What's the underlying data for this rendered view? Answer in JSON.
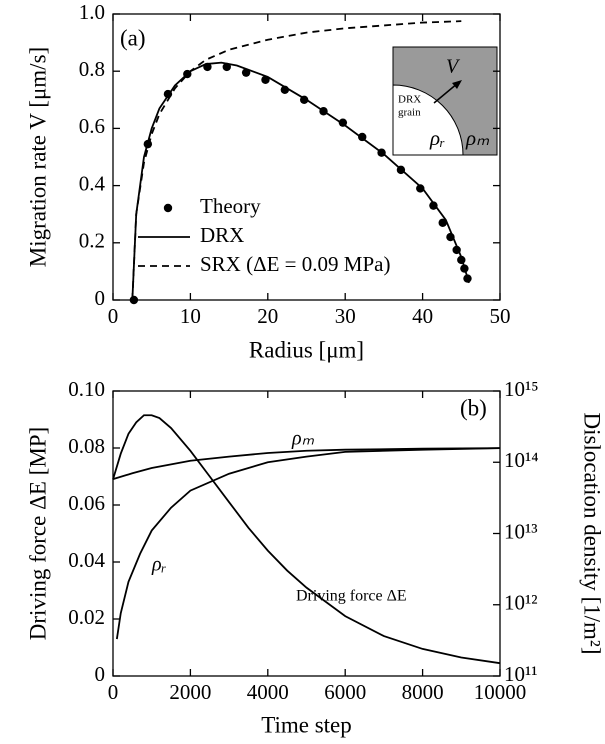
{
  "chart_data": [
    {
      "type": "line",
      "panel_label": "(a)",
      "xlabel": "Radius [μm]",
      "ylabel": "Migration rate V [μm/s]",
      "xlim": [
        0,
        50
      ],
      "xticks": [
        0,
        10,
        20,
        30,
        40,
        50
      ],
      "ylim": [
        0,
        1
      ],
      "yticks": [
        0,
        0.2,
        0.4,
        0.6,
        0.8,
        {
          "value": 1,
          "label": "1.0"
        }
      ],
      "series": [
        {
          "name": "Theory",
          "style": "dots",
          "color": "#000000",
          "x": [
            2.7,
            4.5,
            7.1,
            9.6,
            12.2,
            14.7,
            17.2,
            19.7,
            22.2,
            24.7,
            27.2,
            29.7,
            32.2,
            34.7,
            37.2,
            39.7,
            41.4,
            42.6,
            43.6,
            44.4,
            45.0,
            45.4,
            45.8
          ],
          "values": [
            0,
            0.545,
            0.72,
            0.79,
            0.815,
            0.815,
            0.795,
            0.77,
            0.735,
            0.7,
            0.66,
            0.62,
            0.57,
            0.515,
            0.455,
            0.39,
            0.33,
            0.27,
            0.22,
            0.175,
            0.14,
            0.11,
            0.075
          ]
        },
        {
          "name": "DRX",
          "style": "solid",
          "color": "#000000",
          "x": [
            2.5,
            3,
            4,
            5,
            6,
            8,
            10,
            12,
            14,
            16,
            20,
            25,
            30,
            35,
            40,
            43,
            45,
            46
          ],
          "values": [
            0,
            0.3,
            0.5,
            0.6,
            0.67,
            0.75,
            0.8,
            0.825,
            0.83,
            0.82,
            0.78,
            0.7,
            0.61,
            0.51,
            0.39,
            0.28,
            0.15,
            0.06
          ]
        },
        {
          "name": "SRX (ΔE = 0.09 MPa)",
          "style": "dashed",
          "color": "#000000",
          "x": [
            2.5,
            3,
            4,
            5,
            6,
            8,
            10,
            12,
            15,
            20,
            25,
            30,
            35,
            40,
            45
          ],
          "values": [
            0,
            0.3,
            0.48,
            0.58,
            0.65,
            0.74,
            0.8,
            0.84,
            0.875,
            0.91,
            0.935,
            0.95,
            0.96,
            0.97,
            0.975
          ]
        }
      ],
      "annotations": [
        "DRX",
        "grain",
        "V",
        "ρᵣ",
        "ρₘ"
      ]
    },
    {
      "type": "line",
      "panel_label": "(b)",
      "xlabel": "Time step",
      "ylabel": "Driving force ΔE [MP]",
      "y2label": "Dislocation density [1/m²]",
      "xlim": [
        0,
        10000
      ],
      "xticks": [
        0,
        2000,
        4000,
        6000,
        8000,
        10000
      ],
      "ylim": [
        0,
        0.1
      ],
      "yticks": [
        0,
        0.02,
        0.04,
        0.06,
        0.08,
        {
          "value": 0.1,
          "label": "0.10"
        }
      ],
      "y2lim": [
        100000000000,
        1000000000000000
      ],
      "y2scale": "log",
      "y2ticks": [
        {
          "value": 100000000000,
          "label": "10¹¹"
        },
        {
          "value": 1000000000000,
          "label": "10¹²"
        },
        {
          "value": 10000000000000,
          "label": "10¹³"
        },
        {
          "value": 100000000000000,
          "label": "10¹⁴"
        },
        {
          "value": 1000000000000000,
          "label": "10¹⁵"
        }
      ],
      "series": [
        {
          "style": "solid",
          "color": "#000000",
          "x": [
            0,
            200,
            400,
            600,
            800,
            1000,
            1200,
            1500,
            2000,
            2500,
            3000,
            3500,
            4000,
            4500,
            5000,
            6000,
            7000,
            8000,
            9000,
            10000
          ],
          "values": [
            0.069,
            0.078,
            0.085,
            0.089,
            0.0915,
            0.0915,
            0.0905,
            0.087,
            0.079,
            0.07,
            0.061,
            0.052,
            0.044,
            0.037,
            0.031,
            0.021,
            0.014,
            0.0095,
            0.0065,
            0.0045
          ]
        },
        {
          "style": "solid",
          "color": "#000000",
          "axis": "y2",
          "x": [
            0,
            500,
            1000,
            2000,
            3000,
            4000,
            5000,
            6000,
            8000,
            10000
          ],
          "values": [
            58000000000000,
            70000000000000,
            83000000000000,
            105000000000000,
            120000000000000,
            135000000000000,
            145000000000000,
            150000000000000,
            155000000000000,
            158000000000000
          ]
        },
        {
          "style": "solid",
          "color": "#000000",
          "axis": "y2",
          "x": [
            100,
            200,
            400,
            700,
            1000,
            1500,
            2000,
            3000,
            4000,
            5000,
            6000,
            8000,
            10000
          ],
          "values": [
            330000000000,
            760000000000,
            2100000000000,
            5200000000000,
            11000000000000,
            23000000000000,
            40000000000000,
            69000000000000,
            100000000000000,
            120000000000000,
            140000000000000,
            150000000000000,
            158000000000000
          ]
        }
      ],
      "annotations": [
        "ρₘ",
        "ρᵣ",
        "Driving force ΔE"
      ]
    }
  ]
}
